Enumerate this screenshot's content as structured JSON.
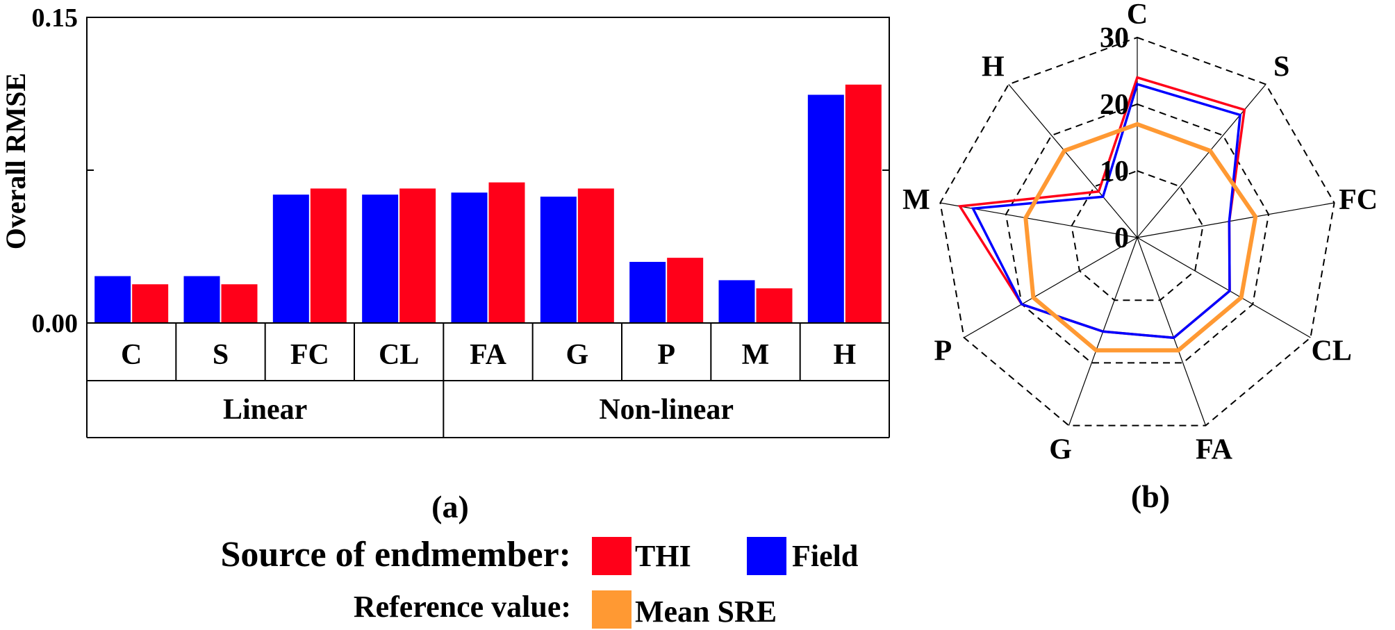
{
  "chart_data": [
    {
      "panel": "(a)",
      "type": "bar",
      "ylabel": "Overall RMSE",
      "yticks": [
        "0.00",
        "0.15"
      ],
      "ylim": [
        0,
        0.15
      ],
      "categories": [
        "C",
        "S",
        "FC",
        "CL",
        "FA",
        "G",
        "P",
        "M",
        "H"
      ],
      "groups": [
        {
          "label": "Linear",
          "members": [
            "C",
            "S",
            "FC",
            "CL"
          ]
        },
        {
          "label": "Non-linear",
          "members": [
            "FA",
            "G",
            "P",
            "M",
            "H"
          ]
        }
      ],
      "series": [
        {
          "name": "Field",
          "color": "#0000ff",
          "values": [
            0.023,
            0.023,
            0.063,
            0.063,
            0.064,
            0.062,
            0.03,
            0.021,
            0.112
          ]
        },
        {
          "name": "THI",
          "color": "#ff0019",
          "values": [
            0.019,
            0.019,
            0.066,
            0.066,
            0.069,
            0.066,
            0.032,
            0.017,
            0.117
          ]
        }
      ]
    },
    {
      "panel": "(b)",
      "type": "radar",
      "axes": [
        "C",
        "S",
        "FC",
        "CL",
        "FA",
        "G",
        "P",
        "M",
        "H"
      ],
      "rticks": [
        "0",
        "10",
        "20",
        "30"
      ],
      "rlim": [
        0,
        30
      ],
      "series": [
        {
          "name": "THI",
          "color": "#ff0019",
          "values": [
            24,
            25,
            14,
            16,
            16,
            15,
            20,
            27,
            9
          ]
        },
        {
          "name": "Field",
          "color": "#0000ff",
          "values": [
            23,
            24,
            14,
            16,
            16,
            15,
            20,
            25,
            8
          ]
        },
        {
          "name": "Mean SRE",
          "color": "#ff9933",
          "values": [
            17,
            17,
            18,
            18,
            18,
            18,
            18,
            17,
            17
          ]
        }
      ]
    }
  ],
  "panel_labels": {
    "a": "(a)",
    "b": "(b)"
  },
  "legend": {
    "source_label": "Source of endmember:",
    "thi_label": "THI",
    "field_label": "Field",
    "reference_label": "Reference value:",
    "mean_sre_label": "Mean SRE",
    "colors": {
      "thi": "#ff0019",
      "field": "#0000ff",
      "mean_sre": "#ff9933"
    }
  }
}
